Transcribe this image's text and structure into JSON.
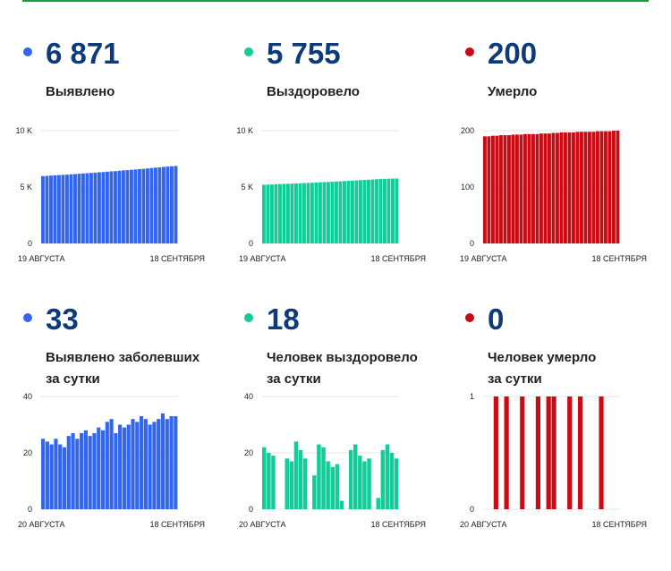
{
  "colors": {
    "blue": "#3366ee",
    "green": "#12cc99",
    "red": "#cc0a14",
    "number": "#0d3b7a",
    "topline": "#1a9b3c"
  },
  "panels": [
    {
      "color": "blue",
      "value": "6 871",
      "label_lines": [
        "Выявлено"
      ],
      "chart_data": {
        "type": "bar",
        "ylim": [
          0,
          10000
        ],
        "yticks": [
          {
            "v": 10000,
            "label": "10 K"
          },
          {
            "v": 5000,
            "label": "5 K"
          },
          {
            "v": 0,
            "label": "0"
          }
        ],
        "x_start_label": "19 АВГУСТА",
        "x_end_label": "18 СЕНТЯБРЯ",
        "values": [
          5970,
          5990,
          6020,
          6040,
          6060,
          6080,
          6100,
          6130,
          6150,
          6180,
          6200,
          6230,
          6250,
          6280,
          6310,
          6330,
          6360,
          6390,
          6410,
          6450,
          6480,
          6500,
          6530,
          6560,
          6590,
          6620,
          6650,
          6690,
          6720,
          6750,
          6790,
          6820,
          6840,
          6871
        ]
      }
    },
    {
      "color": "green",
      "value": "5 755",
      "label_lines": [
        "Выздоровело"
      ],
      "chart_data": {
        "type": "bar",
        "ylim": [
          0,
          10000
        ],
        "yticks": [
          {
            "v": 10000,
            "label": "10 K"
          },
          {
            "v": 5000,
            "label": "5 K"
          },
          {
            "v": 0,
            "label": "0"
          }
        ],
        "x_start_label": "19 АВГУСТА",
        "x_end_label": "18 СЕНТЯБРЯ",
        "values": [
          5200,
          5220,
          5230,
          5250,
          5260,
          5280,
          5290,
          5300,
          5320,
          5330,
          5350,
          5370,
          5380,
          5400,
          5420,
          5440,
          5450,
          5470,
          5490,
          5510,
          5530,
          5550,
          5570,
          5590,
          5610,
          5630,
          5650,
          5670,
          5690,
          5710,
          5720,
          5740,
          5750,
          5755
        ]
      }
    },
    {
      "color": "red",
      "value": "200",
      "label_lines": [
        "Умерло"
      ],
      "chart_data": {
        "type": "bar",
        "ylim": [
          0,
          200
        ],
        "yticks": [
          {
            "v": 200,
            "label": "200"
          },
          {
            "v": 100,
            "label": "100"
          },
          {
            "v": 0,
            "label": "0"
          }
        ],
        "x_start_label": "19 АВГУСТА",
        "x_end_label": "18 СЕНТЯБРЯ",
        "values": [
          190,
          190,
          191,
          191,
          192,
          192,
          192,
          193,
          193,
          193,
          194,
          194,
          194,
          194,
          195,
          195,
          195,
          196,
          196,
          197,
          197,
          197,
          197,
          198,
          198,
          198,
          198,
          198,
          199,
          199,
          199,
          199,
          200,
          200
        ]
      }
    },
    {
      "color": "blue",
      "value": "33",
      "label_lines": [
        "Выявлено заболевших",
        "за сутки"
      ],
      "chart_data": {
        "type": "bar",
        "ylim": [
          0,
          40
        ],
        "yticks": [
          {
            "v": 40,
            "label": "40"
          },
          {
            "v": 20,
            "label": "20"
          },
          {
            "v": 0,
            "label": "0"
          }
        ],
        "x_start_label": "20 АВГУСТА",
        "x_end_label": "18 СЕНТЯБРЯ",
        "values": [
          25,
          24,
          23,
          25,
          23,
          22,
          26,
          27,
          25,
          27,
          28,
          26,
          27,
          29,
          28,
          31,
          32,
          27,
          30,
          29,
          30,
          32,
          31,
          33,
          32,
          30,
          31,
          32,
          34,
          32,
          33,
          33
        ]
      }
    },
    {
      "color": "green",
      "value": "18",
      "label_lines": [
        "Человек выздоровело",
        "за сутки"
      ],
      "chart_data": {
        "type": "bar",
        "ylim": [
          0,
          40
        ],
        "yticks": [
          {
            "v": 40,
            "label": "40"
          },
          {
            "v": 20,
            "label": "20"
          },
          {
            "v": 0,
            "label": "0"
          }
        ],
        "x_start_label": "20 АВГУСТА",
        "x_end_label": "18 СЕНТЯБРЯ",
        "values": [
          22,
          20,
          19,
          0,
          0,
          18,
          17,
          24,
          21,
          18,
          0,
          12,
          23,
          22,
          17,
          15,
          16,
          3,
          0,
          21,
          23,
          19,
          17,
          18,
          0,
          4,
          21,
          23,
          20,
          18
        ]
      }
    },
    {
      "color": "red",
      "value": "0",
      "label_lines": [
        "Человек умерло",
        "за сутки"
      ],
      "chart_data": {
        "type": "bar",
        "ylim": [
          0,
          1
        ],
        "yticks": [
          {
            "v": 1,
            "label": "1"
          },
          {
            "v": 0,
            "label": "0"
          }
        ],
        "x_start_label": "20 АВГУСТА",
        "x_end_label": "18 СЕНТЯБРЯ",
        "values": [
          0,
          0,
          1,
          0,
          1,
          0,
          0,
          1,
          0,
          0,
          1,
          0,
          1,
          1,
          0,
          0,
          1,
          0,
          1,
          0,
          0,
          0,
          1,
          0,
          0,
          0
        ]
      }
    }
  ]
}
